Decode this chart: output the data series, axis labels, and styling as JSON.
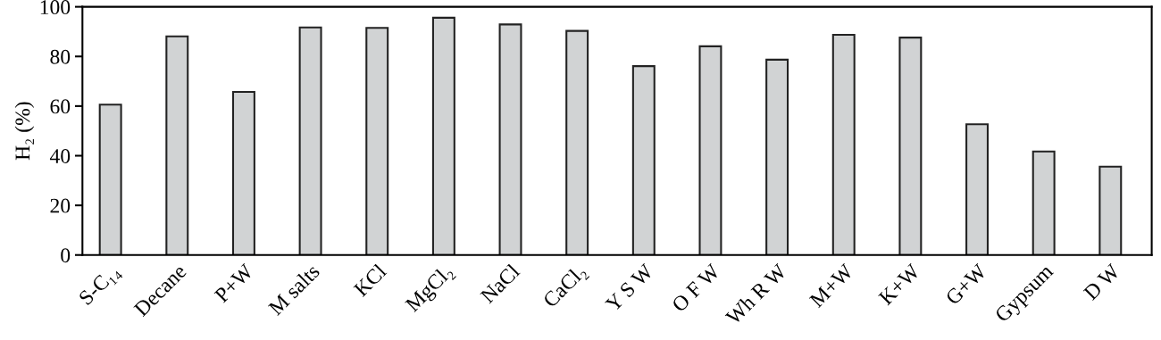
{
  "chart_data": {
    "type": "bar",
    "ylabel": "H₂ (%)",
    "categories": [
      "S-C₁₄",
      "Decane",
      "P+W",
      "M salts",
      "KCl",
      "MgCl₂",
      "NaCl",
      "CaCl₂",
      "Y S W",
      "O F W",
      "Wh R W",
      "M+W",
      "K+W",
      "G+W",
      "Gypsum",
      "D W"
    ],
    "values": [
      60.6,
      88.1,
      65.7,
      91.7,
      91.5,
      95.6,
      92.9,
      90.3,
      76.1,
      84.1,
      78.7,
      88.7,
      87.6,
      52.7,
      41.7,
      35.6
    ],
    "color": "#d1d3d4",
    "ylim": [
      0,
      100
    ],
    "yticks": [
      0,
      20,
      40,
      60,
      80,
      100
    ],
    "grid": false
  }
}
